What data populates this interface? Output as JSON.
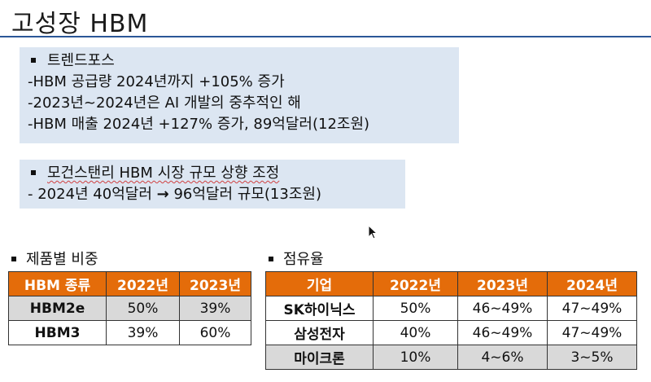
{
  "title": "고성장 HBM",
  "box1": {
    "lines": [
      "트렌드포스",
      "-HBM 공급량 2024년까지 +105% 증가",
      "-2023년~2024년은 AI 개발의 중추적인 해",
      "-HBM 매출 2024년 +127% 증가, 89억달러(12조원)"
    ]
  },
  "box2": {
    "heading": "모건스탠리 HBM 시장 규모 상향 조정",
    "line_a": "- 2024년 40억달러",
    "arrow": "→",
    "line_b": "96억달러 규모(13조원)"
  },
  "product_share": {
    "label": "제품별 비중",
    "headers": [
      "HBM 종류",
      "2022년",
      "2023년"
    ],
    "rows": [
      {
        "name": "HBM2e",
        "values": [
          "50%",
          "39%"
        ]
      },
      {
        "name": "HBM3",
        "values": [
          "39%",
          "60%"
        ]
      }
    ]
  },
  "market_share": {
    "label": "점유율",
    "headers": [
      "기업",
      "2022년",
      "2023년",
      "2024년"
    ],
    "rows": [
      {
        "name": "SK하이닉스",
        "values": [
          "50%",
          "46~49%",
          "47~49%"
        ]
      },
      {
        "name": "삼성전자",
        "values": [
          "40%",
          "46~49%",
          "47~49%"
        ]
      },
      {
        "name": "마이크론",
        "values": [
          "10%",
          "4~6%",
          "3~5%"
        ]
      }
    ]
  },
  "colors": {
    "header_orange": "#e46c0a",
    "box_blue": "#dce6f2",
    "title_rule": "#2b5797",
    "shade": "#d9d9d9"
  }
}
